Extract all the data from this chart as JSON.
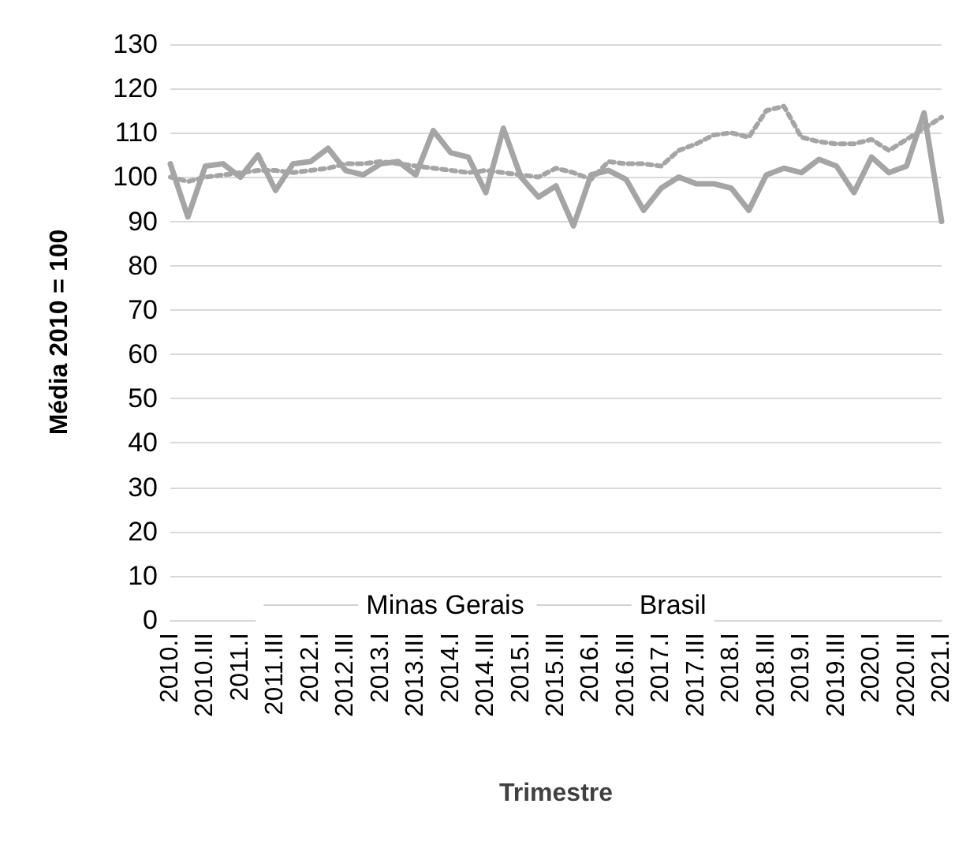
{
  "chart_data": {
    "type": "line",
    "xlabel": "Trimestre",
    "ylabel": "Média 2010 = 100",
    "categories": [
      "2010.I",
      null,
      "2010.III",
      null,
      "2011.I",
      null,
      "2011.III",
      null,
      "2012.I",
      null,
      "2012.III",
      null,
      "2013.I",
      null,
      "2013.III",
      null,
      "2014.I",
      null,
      "2014.III",
      null,
      "2015.I",
      null,
      "2015.III",
      null,
      "2016.I",
      null,
      "2016.III",
      null,
      "2017.I",
      null,
      "2017.III",
      null,
      "2018.I",
      null,
      "2018.III",
      null,
      "2019.I",
      null,
      "2019.III",
      null,
      "2020.I",
      null,
      "2020.III",
      null,
      "2021.I"
    ],
    "series": [
      {
        "name": "Minas Gerais",
        "color": "#a5a5a5",
        "line_style": "solid",
        "values": [
          103,
          91,
          102.5,
          103,
          100,
          105,
          97,
          103,
          103.5,
          106.5,
          101.5,
          100.5,
          103,
          103.5,
          100.5,
          110.5,
          105.5,
          104.5,
          96.5,
          111,
          100,
          95.5,
          98,
          89,
          100.5,
          101.5,
          99.5,
          92.5,
          97.5,
          100,
          98.5,
          98.5,
          97.5,
          92.5,
          100.5,
          102,
          101,
          104,
          102.5,
          96.5,
          104.5,
          101,
          102.5,
          114.5,
          90
        ]
      },
      {
        "name": "Brasil",
        "color": "#a5a5a5",
        "line_style": "dotted",
        "values": [
          100,
          99,
          100,
          100.5,
          101,
          101.5,
          101.5,
          101,
          101.5,
          102,
          103,
          103,
          103.5,
          103,
          102.5,
          102,
          101.5,
          101,
          101.5,
          101,
          100.5,
          100,
          102,
          101,
          99.5,
          103.5,
          103,
          103,
          102.5,
          106,
          107.5,
          109.5,
          110,
          109,
          115,
          116,
          109,
          108,
          107.5,
          107.5,
          108.5,
          106,
          108.5,
          111,
          113.5
        ]
      }
    ],
    "ylim": [
      0,
      130
    ],
    "yticks": [
      0,
      10,
      20,
      30,
      40,
      50,
      60,
      70,
      80,
      90,
      100,
      110,
      120,
      130
    ],
    "grid": "y",
    "legend": "bottom",
    "marker": "none"
  }
}
